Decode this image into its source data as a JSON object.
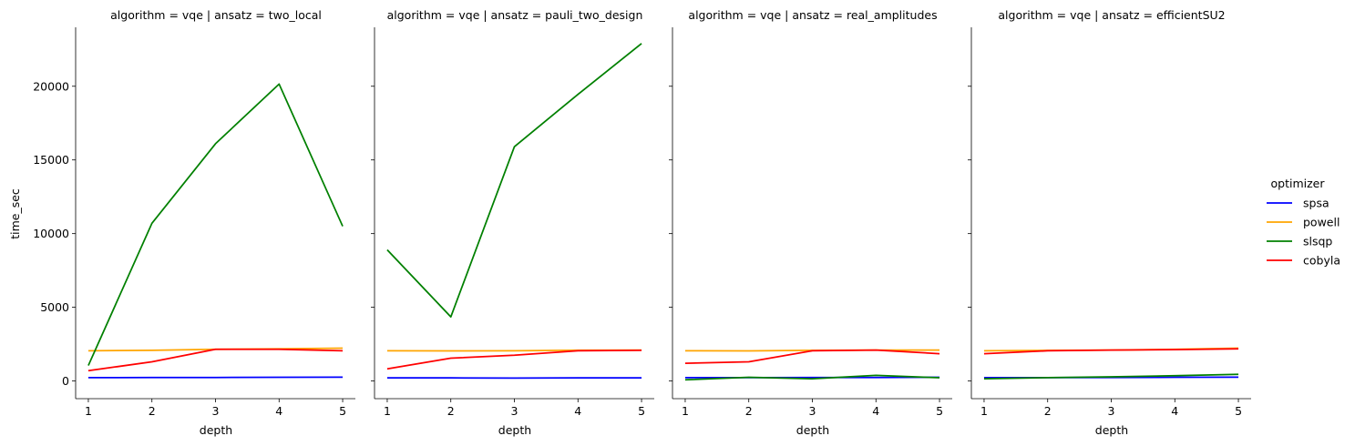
{
  "facets": [
    {
      "title": "algorithm = vqe | ansatz = two_local"
    },
    {
      "title": "algorithm = vqe | ansatz = pauli_two_design"
    },
    {
      "title": "algorithm = vqe | ansatz = real_amplitudes"
    },
    {
      "title": "algorithm = vqe | ansatz = efficientSU2"
    }
  ],
  "legend": {
    "title": "optimizer",
    "items": [
      {
        "label": "spsa",
        "color": "#0000ff"
      },
      {
        "label": "powell",
        "color": "#ffa500"
      },
      {
        "label": "slsqp",
        "color": "#008000"
      },
      {
        "label": "cobyla",
        "color": "#ff0000"
      }
    ]
  },
  "chart_data": [
    {
      "type": "line",
      "title": "algorithm = vqe | ansatz = two_local",
      "xlabel": "depth",
      "ylabel": "time_sec",
      "x": [
        1,
        2,
        3,
        4,
        5
      ],
      "xticks": [
        "1",
        "2",
        "3",
        "4",
        "5"
      ],
      "yticks": [
        "0",
        "5000",
        "10000",
        "15000",
        "20000"
      ],
      "ylim": [
        -1200,
        24000
      ],
      "series": [
        {
          "name": "spsa",
          "color": "#0000ff",
          "values": [
            230,
            235,
            240,
            250,
            260
          ]
        },
        {
          "name": "powell",
          "color": "#ffa500",
          "values": [
            2050,
            2080,
            2150,
            2180,
            2230
          ]
        },
        {
          "name": "slsqp",
          "color": "#008000",
          "values": [
            1050,
            10700,
            16100,
            20150,
            10500
          ]
        },
        {
          "name": "cobyla",
          "color": "#ff0000",
          "values": [
            700,
            1300,
            2150,
            2150,
            2050
          ]
        }
      ]
    },
    {
      "type": "line",
      "title": "algorithm = vqe | ansatz = pauli_two_design",
      "xlabel": "depth",
      "ylabel": "",
      "x": [
        1,
        2,
        3,
        4,
        5
      ],
      "xticks": [
        "1",
        "2",
        "3",
        "4",
        "5"
      ],
      "ylim": [
        -1200,
        24000
      ],
      "series": [
        {
          "name": "spsa",
          "color": "#0000ff",
          "values": [
            210,
            210,
            200,
            210,
            210
          ]
        },
        {
          "name": "powell",
          "color": "#ffa500",
          "values": [
            2050,
            2040,
            2050,
            2090,
            2100
          ]
        },
        {
          "name": "slsqp",
          "color": "#008000",
          "values": [
            8900,
            4350,
            15900,
            19450,
            22900
          ]
        },
        {
          "name": "cobyla",
          "color": "#ff0000",
          "values": [
            820,
            1550,
            1750,
            2050,
            2080
          ]
        }
      ]
    },
    {
      "type": "line",
      "title": "algorithm = vqe | ansatz = real_amplitudes",
      "xlabel": "depth",
      "ylabel": "",
      "x": [
        1,
        2,
        3,
        4,
        5
      ],
      "xticks": [
        "1",
        "2",
        "3",
        "4",
        "5"
      ],
      "ylim": [
        -1200,
        24000
      ],
      "series": [
        {
          "name": "spsa",
          "color": "#0000ff",
          "values": [
            230,
            230,
            240,
            240,
            250
          ]
        },
        {
          "name": "powell",
          "color": "#ffa500",
          "values": [
            2050,
            2040,
            2080,
            2100,
            2100
          ]
        },
        {
          "name": "slsqp",
          "color": "#008000",
          "values": [
            80,
            250,
            150,
            380,
            220
          ]
        },
        {
          "name": "cobyla",
          "color": "#ff0000",
          "values": [
            1200,
            1300,
            2050,
            2100,
            1850
          ]
        }
      ]
    },
    {
      "type": "line",
      "title": "algorithm = vqe | ansatz = efficientSU2",
      "xlabel": "depth",
      "ylabel": "",
      "x": [
        1,
        2,
        3,
        4,
        5
      ],
      "xticks": [
        "1",
        "2",
        "3",
        "4",
        "5"
      ],
      "ylim": [
        -1200,
        24000
      ],
      "series": [
        {
          "name": "spsa",
          "color": "#0000ff",
          "values": [
            230,
            230,
            240,
            250,
            260
          ]
        },
        {
          "name": "powell",
          "color": "#ffa500",
          "values": [
            2050,
            2080,
            2100,
            2150,
            2230
          ]
        },
        {
          "name": "slsqp",
          "color": "#008000",
          "values": [
            150,
            230,
            280,
            360,
            450
          ]
        },
        {
          "name": "cobyla",
          "color": "#ff0000",
          "values": [
            1850,
            2050,
            2100,
            2130,
            2180
          ]
        }
      ]
    }
  ]
}
